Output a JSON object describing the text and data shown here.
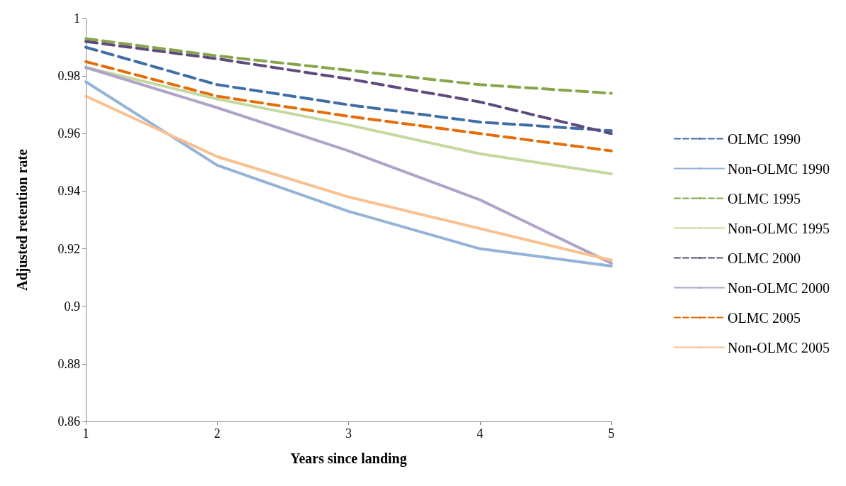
{
  "chart_data": {
    "type": "line",
    "xlabel": "Years since landing",
    "ylabel": "Adjusted retention rate",
    "x": [
      1,
      2,
      3,
      4,
      5
    ],
    "xlim": [
      1,
      5
    ],
    "xticks": [
      1,
      2,
      3,
      4,
      5
    ],
    "ylim": [
      0.86,
      1
    ],
    "yticks": [
      0.86,
      0.88,
      0.9,
      0.92,
      0.94,
      0.96,
      0.98,
      1
    ],
    "grid": false,
    "legend": "right",
    "marker": "none",
    "series": [
      {
        "name": "OLMC 1990",
        "color": "#3f6ea6",
        "line_style": "dashed",
        "values": [
          0.99,
          0.977,
          0.97,
          0.964,
          0.961
        ]
      },
      {
        "name": "Non-OLMC 1990",
        "color": "#94b3d8",
        "line_style": "solid",
        "values": [
          0.978,
          0.949,
          0.933,
          0.92,
          0.914
        ]
      },
      {
        "name": "OLMC 1995",
        "color": "#86a64a",
        "line_style": "dashed",
        "values": [
          0.993,
          0.987,
          0.982,
          0.977,
          0.974
        ]
      },
      {
        "name": "Non-OLMC 1995",
        "color": "#c5d99e",
        "line_style": "solid",
        "values": [
          0.983,
          0.972,
          0.963,
          0.953,
          0.946
        ]
      },
      {
        "name": "OLMC 2000",
        "color": "#5e4b7d",
        "line_style": "dashed",
        "values": [
          0.992,
          0.986,
          0.979,
          0.971,
          0.96
        ]
      },
      {
        "name": "Non-OLMC 2000",
        "color": "#b1a2c9",
        "line_style": "solid",
        "values": [
          0.983,
          0.969,
          0.954,
          0.937,
          0.915
        ]
      },
      {
        "name": "OLMC 2005",
        "color": "#e46c0a",
        "line_style": "dashed",
        "values": [
          0.985,
          0.973,
          0.966,
          0.96,
          0.954
        ]
      },
      {
        "name": "Non-OLMC 2005",
        "color": "#fac090",
        "line_style": "solid",
        "values": [
          0.973,
          0.952,
          0.938,
          0.927,
          0.916
        ]
      }
    ]
  }
}
